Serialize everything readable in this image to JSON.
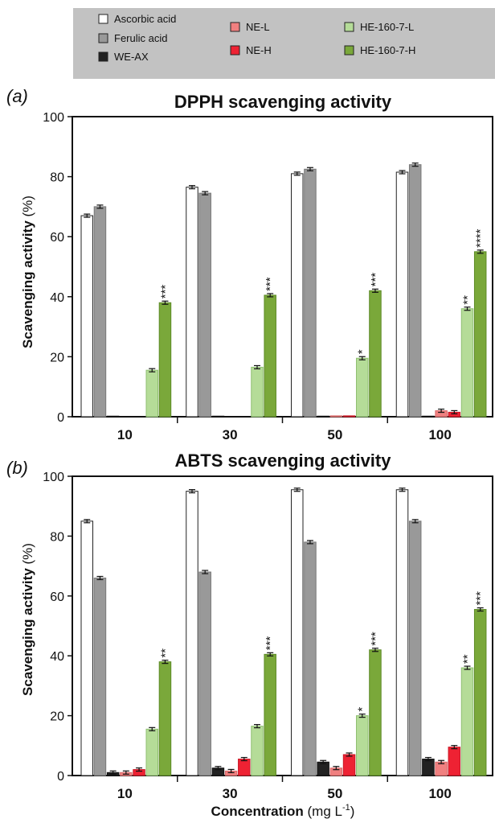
{
  "legend": [
    {
      "label": "Ascorbic acid",
      "color": "#ffffff"
    },
    {
      "label": "Ferulic acid",
      "color": "#999999"
    },
    {
      "label": "WE-AX",
      "color": "#222222"
    },
    {
      "label": "NE-L",
      "color": "#f08080"
    },
    {
      "label": "NE-H",
      "color": "#ee2233"
    },
    {
      "label": "HE-160-7-L",
      "color": "#b5dc98"
    },
    {
      "label": "HE-160-7-H",
      "color": "#7aa83a"
    }
  ],
  "chart_data": [
    {
      "type": "bar",
      "panel": "(a)",
      "title": "DPPH scavenging activity",
      "ylabel_main": "Scavenging activity",
      "ylabel_unit": "(%)",
      "ylim": [
        0,
        100
      ],
      "yticks": [
        "0",
        "20",
        "40",
        "60",
        "80",
        "100"
      ],
      "categories": [
        "10",
        "30",
        "50",
        "100"
      ],
      "series": [
        {
          "name": "Ascorbic acid",
          "values": [
            67,
            76.5,
            81,
            81.5
          ]
        },
        {
          "name": "Ferulic acid",
          "values": [
            70,
            74.5,
            82.5,
            84
          ]
        },
        {
          "name": "WE-AX",
          "values": [
            0.2,
            0.2,
            0.2,
            0.2
          ]
        },
        {
          "name": "NE-L",
          "values": [
            0,
            0,
            0.3,
            2
          ]
        },
        {
          "name": "NE-H",
          "values": [
            0,
            0,
            0.3,
            1.5
          ]
        },
        {
          "name": "HE-160-7-L",
          "values": [
            15.5,
            16.5,
            19.5,
            36
          ]
        },
        {
          "name": "HE-160-7-H",
          "values": [
            38,
            40.5,
            42,
            55
          ]
        }
      ],
      "annotations": [
        {
          "category": "10",
          "series": "HE-160-7-H",
          "text": "***"
        },
        {
          "category": "30",
          "series": "HE-160-7-H",
          "text": "***"
        },
        {
          "category": "50",
          "series": "HE-160-7-L",
          "text": "*"
        },
        {
          "category": "50",
          "series": "HE-160-7-H",
          "text": "***"
        },
        {
          "category": "100",
          "series": "HE-160-7-L",
          "text": "**"
        },
        {
          "category": "100",
          "series": "HE-160-7-H",
          "text": "****"
        }
      ]
    },
    {
      "type": "bar",
      "panel": "(b)",
      "title": "ABTS scavenging activity",
      "ylabel_main": "Scavenging activity",
      "ylabel_unit": "(%)",
      "ylim": [
        0,
        100
      ],
      "yticks": [
        "0",
        "20",
        "40",
        "60",
        "80",
        "100"
      ],
      "categories": [
        "10",
        "30",
        "50",
        "100"
      ],
      "xlabel_main": "Concentration",
      "xlabel_unit": "(mg L",
      "xlabel_sup": "-1",
      "xlabel_close": ")",
      "series": [
        {
          "name": "Ascorbic acid",
          "values": [
            85,
            95,
            95.5,
            95.5
          ]
        },
        {
          "name": "Ferulic acid",
          "values": [
            66,
            68,
            78,
            85
          ]
        },
        {
          "name": "WE-AX",
          "values": [
            1,
            2.5,
            4.5,
            5.5
          ]
        },
        {
          "name": "NE-L",
          "values": [
            1,
            1.5,
            2.5,
            4.5
          ]
        },
        {
          "name": "NE-H",
          "values": [
            2,
            5.5,
            7,
            9.5
          ]
        },
        {
          "name": "HE-160-7-L",
          "values": [
            15.5,
            16.5,
            20,
            36
          ]
        },
        {
          "name": "HE-160-7-H",
          "values": [
            38,
            40.5,
            42,
            55.5
          ]
        }
      ],
      "annotations": [
        {
          "category": "10",
          "series": "HE-160-7-H",
          "text": "**"
        },
        {
          "category": "30",
          "series": "HE-160-7-H",
          "text": "***"
        },
        {
          "category": "50",
          "series": "HE-160-7-L",
          "text": "*"
        },
        {
          "category": "50",
          "series": "HE-160-7-H",
          "text": "***"
        },
        {
          "category": "100",
          "series": "HE-160-7-L",
          "text": "**"
        },
        {
          "category": "100",
          "series": "HE-160-7-H",
          "text": "***"
        }
      ]
    }
  ]
}
